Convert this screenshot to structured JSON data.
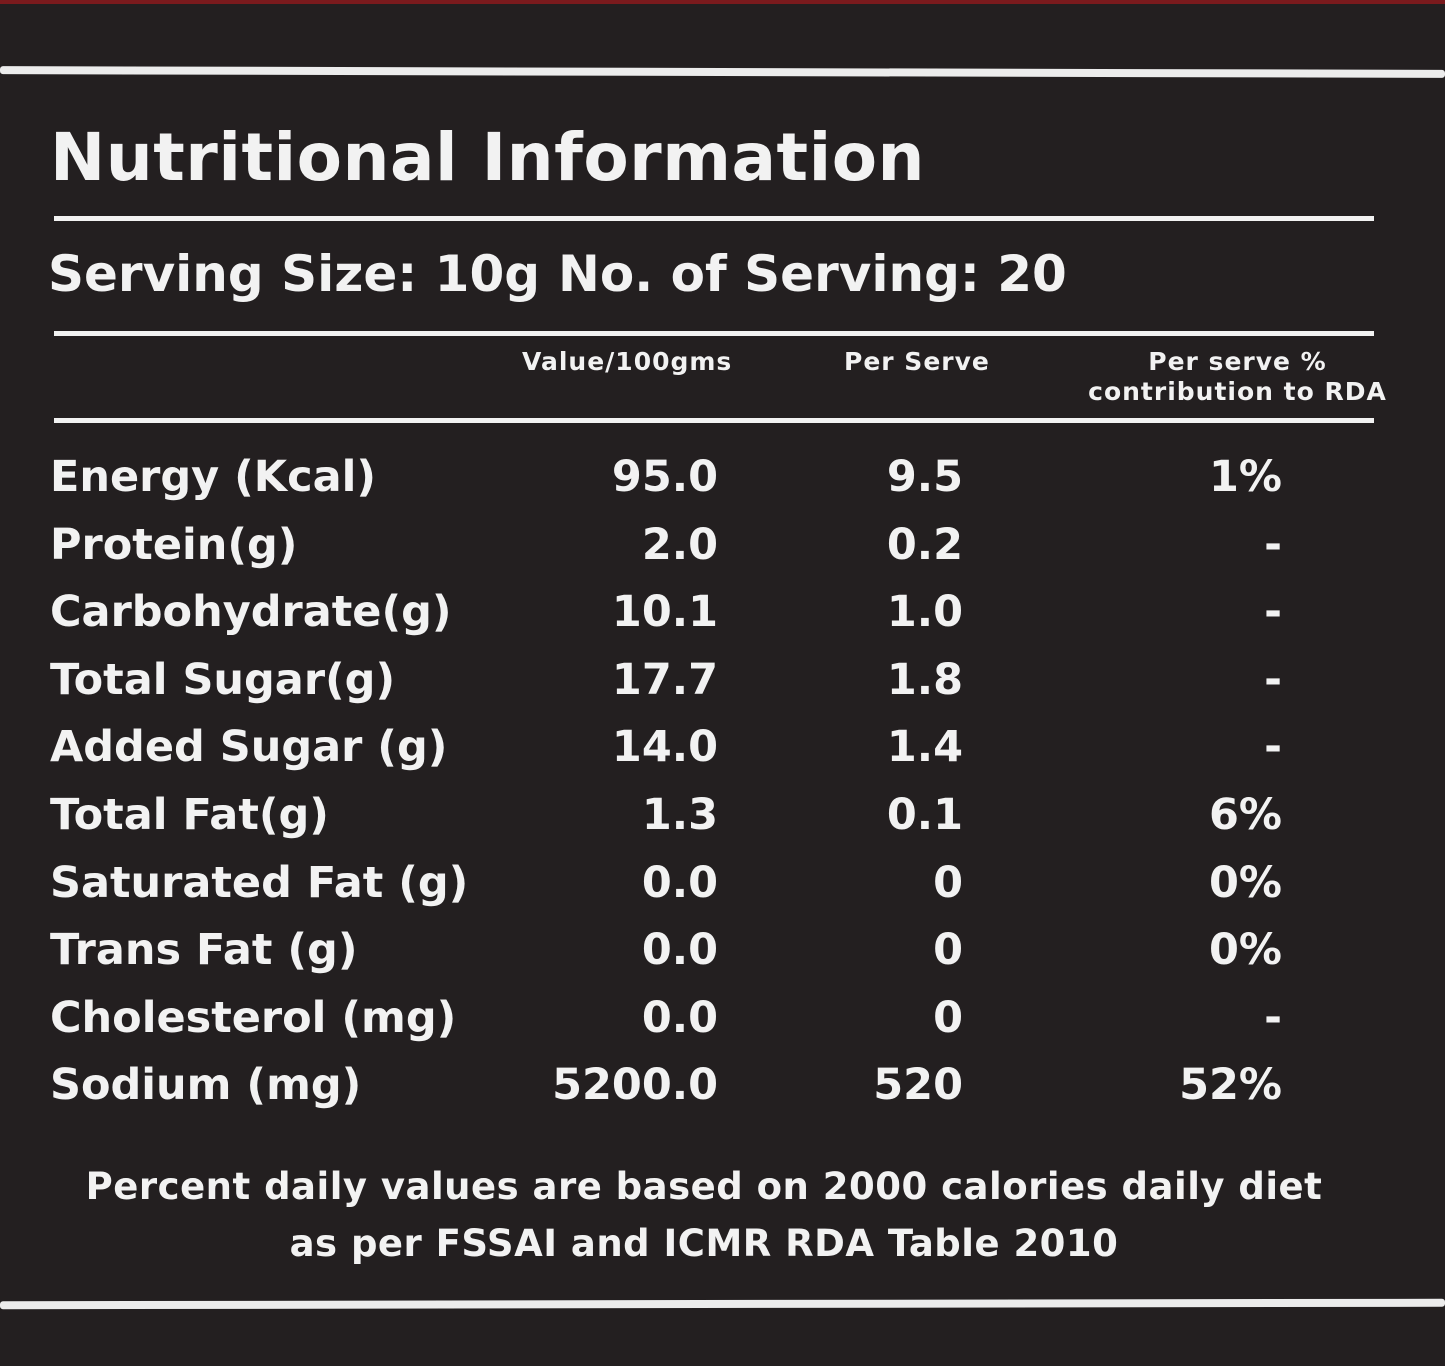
{
  "title": "Nutritional Information",
  "serving": {
    "size": "Serving Size: 10g",
    "count": "No. of Serving: 20"
  },
  "columns": {
    "per_100g": "Value/100gms",
    "per_serve": "Per Serve",
    "rda": "Per serve % contribution to RDA"
  },
  "rows": [
    {
      "label": "Energy (Kcal)",
      "per_100g": "95.0",
      "per_serve": "9.5",
      "rda": "1%"
    },
    {
      "label": "Protein(g)",
      "per_100g": "2.0",
      "per_serve": "0.2",
      "rda": "-"
    },
    {
      "label": "Carbohydrate(g)",
      "per_100g": "10.1",
      "per_serve": "1.0",
      "rda": "-"
    },
    {
      "label": "Total Sugar(g)",
      "per_100g": "17.7",
      "per_serve": "1.8",
      "rda": "-"
    },
    {
      "label": "Added Sugar (g)",
      "per_100g": "14.0",
      "per_serve": "1.4",
      "rda": "-"
    },
    {
      "label": "Total Fat(g)",
      "per_100g": "1.3",
      "per_serve": "0.1",
      "rda": "6%"
    },
    {
      "label": "Saturated Fat (g)",
      "per_100g": "0.0",
      "per_serve": "0",
      "rda": "0%"
    },
    {
      "label": "Trans Fat (g)",
      "per_100g": "0.0",
      "per_serve": "0",
      "rda": "0%"
    },
    {
      "label": "Cholesterol (mg)",
      "per_100g": "0.0",
      "per_serve": "0",
      "rda": "-"
    },
    {
      "label": "Sodium (mg)",
      "per_100g": "5200.0",
      "per_serve": "520",
      "rda": "52%"
    }
  ],
  "footnote": {
    "line1": "Percent daily values are based on 2000 calories daily diet",
    "line2": "as per FSSAI and ICMR RDA Table 2010"
  }
}
